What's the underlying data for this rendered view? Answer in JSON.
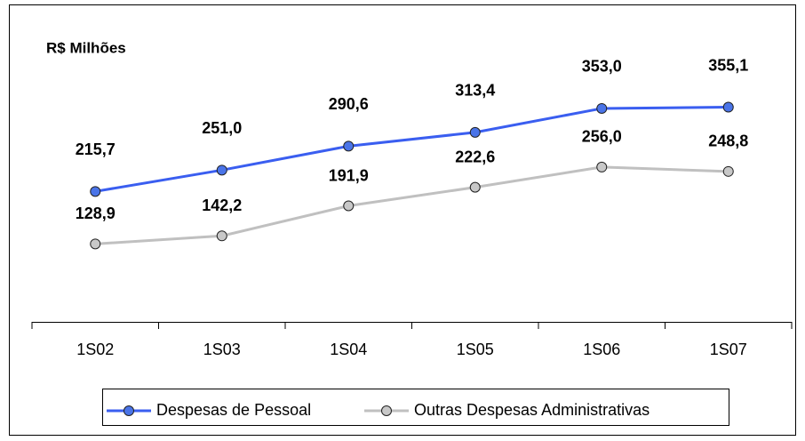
{
  "chart_data": {
    "type": "line",
    "title": "R$ Milhões",
    "categories": [
      "1S02",
      "1S03",
      "1S04",
      "1S05",
      "1S06",
      "1S07"
    ],
    "series": [
      {
        "name": "Despesas de Pessoal",
        "color": "#3a5ef0",
        "marker_color": "#4a74e8",
        "values": [
          215.7,
          251.0,
          290.6,
          313.4,
          353.0,
          355.1
        ],
        "value_labels": [
          "215,7",
          "251,0",
          "290,6",
          "313,4",
          "353,0",
          "355,1"
        ]
      },
      {
        "name": "Outras Despesas Administrativas",
        "color": "#c0c0c0",
        "marker_color": "#c8c8c8",
        "values": [
          128.9,
          142.2,
          191.9,
          222.6,
          256.0,
          248.8
        ],
        "value_labels": [
          "128,9",
          "142,2",
          "191,9",
          "222,6",
          "256,0",
          "248,8"
        ]
      }
    ],
    "ylim": [
      0,
      450
    ],
    "legend": "bottom"
  }
}
